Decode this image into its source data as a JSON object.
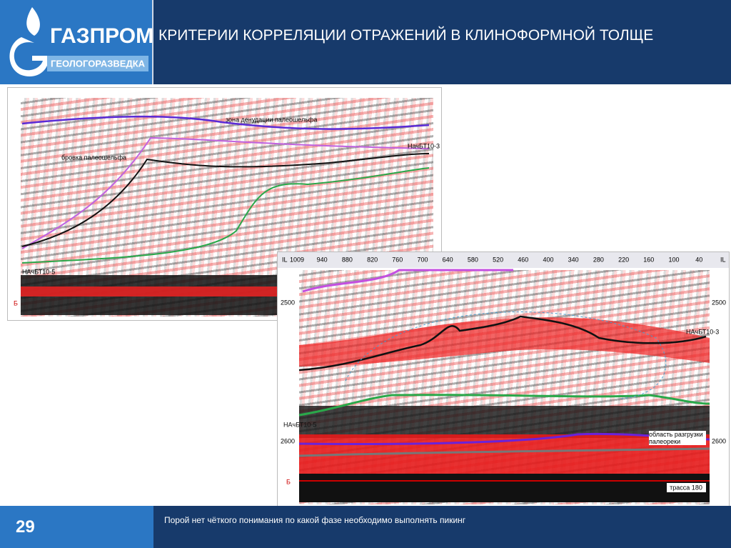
{
  "header": {
    "logo_name": "ГАЗПРОМ",
    "logo_sub": "ГЕОЛОГОРАЗВЕДКА",
    "title": "КРИТЕРИИ КОРРЕЛЯЦИИ ОТРАЖЕНИЙ В КЛИНОФОРМНОЙ ТОЛЩЕ"
  },
  "panel1": {
    "labels": [
      "зона денудации палеошельфа",
      "бровка палеошельфа",
      "НачБТ10-3",
      "НАчБТ10-5",
      "Б"
    ]
  },
  "panel2": {
    "axis_name": "IL",
    "traces": [
      "1009",
      "940",
      "880",
      "820",
      "760",
      "700",
      "640",
      "580",
      "520",
      "460",
      "400",
      "340",
      "280",
      "220",
      "160",
      "100",
      "40"
    ],
    "depths": [
      "2500",
      "2600"
    ],
    "horizon_upper": "НАчБТ10-3",
    "horizon_lower": "НАчБТ10-5",
    "note": "область разгрузки палеореки",
    "trace_note": "трасса 180",
    "base": "Б"
  },
  "footer": {
    "page": "29",
    "text": "Порой нет чёткого понимания по какой фазе  необходимо  выполнять пикинг"
  }
}
